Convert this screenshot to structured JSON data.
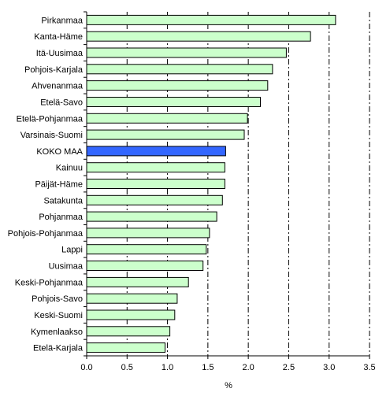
{
  "chart_data": {
    "type": "bar",
    "orientation": "horizontal",
    "categories": [
      "Pirkanmaa",
      "Kanta-Häme",
      "Itä-Uusimaa",
      "Pohjois-Karjala",
      "Ahvenanmaa",
      "Etelä-Savo",
      "Etelä-Pohjanmaa",
      "Varsinais-Suomi",
      "KOKO MAA",
      "Kainuu",
      "Päijät-Häme",
      "Satakunta",
      "Pohjanmaa",
      "Pohjois-Pohjanmaa",
      "Lappi",
      "Uusimaa",
      "Keski-Pohjanmaa",
      "Pohjois-Savo",
      "Keski-Suomi",
      "Kymenlaakso",
      "Etelä-Karjala"
    ],
    "values": [
      3.08,
      2.77,
      2.47,
      2.3,
      2.24,
      2.15,
      1.99,
      1.95,
      1.72,
      1.71,
      1.71,
      1.68,
      1.61,
      1.52,
      1.48,
      1.44,
      1.26,
      1.12,
      1.09,
      1.03,
      0.97
    ],
    "highlight_category": "KOKO MAA",
    "xlabel": "%",
    "ylabel": "",
    "title": "",
    "xlim": [
      0,
      3.5
    ],
    "xticks": [
      "0.0",
      "0.5",
      "1.0",
      "1.5",
      "2.0",
      "2.5",
      "3.0",
      "3.5"
    ],
    "grid": "vertical dash-dot",
    "colors": {
      "bar_fill": "#ccffcc",
      "bar_highlight": "#3366ff",
      "bar_stroke": "#000000",
      "grid": "#000000"
    }
  }
}
